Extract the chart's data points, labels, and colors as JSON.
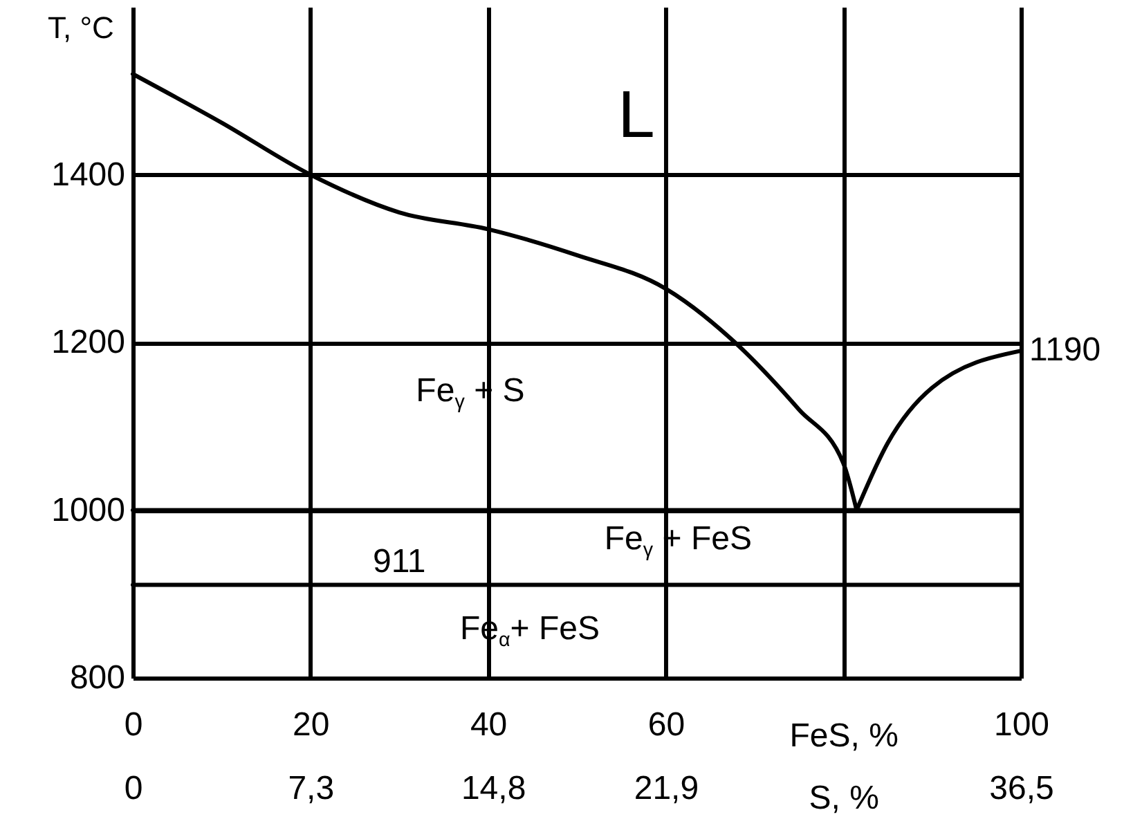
{
  "chart_data": {
    "type": "line",
    "xlabel": "FeS, %",
    "x2label": "S, %",
    "ylabel": "T, °C",
    "xlim": [
      0,
      100
    ],
    "xticks": [
      0,
      20,
      40,
      60,
      {
        "value": 80,
        "label": null
      },
      100
    ],
    "x2lim": [
      0,
      36.5
    ],
    "x2ticks": [
      0,
      {
        "value": 7.3,
        "label": "7,3"
      },
      {
        "value": 14.8,
        "label": "14,8"
      },
      {
        "value": 21.9,
        "label": "21,9"
      },
      {
        "value": 36.5,
        "label": "36,5"
      }
    ],
    "ylim": [
      800,
      1600
    ],
    "yticks": [
      800,
      1000,
      1200,
      1400
    ],
    "grid": true,
    "marker": "none",
    "line_style": "solid",
    "series": [
      {
        "color": "#000000",
        "x": [
          0,
          10,
          20,
          30,
          40,
          50,
          60,
          67.8,
          75,
          80,
          81.5
        ],
        "values": [
          1520,
          1462,
          1400,
          1355,
          1335,
          1304,
          1264,
          1200,
          1120,
          1056,
          1000
        ]
      },
      {
        "color": "#000000",
        "x": [
          81.5,
          85,
          90,
          100
        ],
        "values": [
          1000,
          1080,
          1146,
          1190
        ]
      },
      {
        "color": "#000000",
        "x": [
          0,
          100
        ],
        "values": [
          1000,
          1000
        ]
      },
      {
        "color": "#000000",
        "x": [
          0,
          100
        ],
        "values": [
          911,
          911
        ]
      }
    ],
    "annotations": [
      "L",
      "Fe$_{γ}$ + S",
      {
        "text": "911",
        "x": 30,
        "y": 911
      },
      "Fe$_{γ}$ + FeS",
      "Fe$_{α}$+ FeS",
      {
        "text": "1190",
        "x": 100,
        "y": 1190
      }
    ]
  }
}
